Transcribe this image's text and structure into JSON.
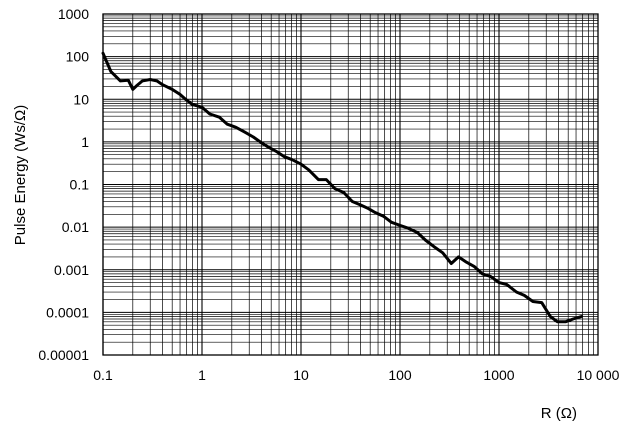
{
  "chart_data": {
    "type": "line",
    "title": "",
    "xlabel": "R (Ω)",
    "ylabel": "Pulse Energy (Ws/Ω)",
    "x_scale": "log",
    "y_scale": "log",
    "xlim": [
      0.1,
      10000
    ],
    "ylim": [
      1e-05,
      1000
    ],
    "x_ticks": [
      {
        "value": 0.1,
        "label": "0.1"
      },
      {
        "value": 1,
        "label": "1"
      },
      {
        "value": 10,
        "label": "10"
      },
      {
        "value": 100,
        "label": "100"
      },
      {
        "value": 1000,
        "label": "1000"
      },
      {
        "value": 10000,
        "label": "10 000"
      }
    ],
    "y_ticks": [
      {
        "value": 1000,
        "label": "1000"
      },
      {
        "value": 100,
        "label": "100"
      },
      {
        "value": 10,
        "label": "10"
      },
      {
        "value": 1,
        "label": "1"
      },
      {
        "value": 0.1,
        "label": "0.1"
      },
      {
        "value": 0.01,
        "label": "0.01"
      },
      {
        "value": 0.001,
        "label": "0.001"
      },
      {
        "value": 0.0001,
        "label": "0.0001"
      },
      {
        "value": 1e-05,
        "label": "0.00001"
      }
    ],
    "grid": true,
    "series": [
      {
        "color": "#000000",
        "x": [
          0.1,
          0.12,
          0.15,
          0.18,
          0.2,
          0.22,
          0.25,
          0.3,
          0.35,
          0.4,
          0.5,
          0.6,
          0.7,
          0.8,
          1.0,
          1.2,
          1.5,
          1.8,
          2.2,
          2.7,
          3.3,
          4.0,
          4.7,
          5.6,
          6.8,
          8.2,
          10,
          12,
          15,
          18,
          22,
          27,
          33,
          39,
          47,
          56,
          68,
          82,
          100,
          120,
          150,
          180,
          220,
          270,
          330,
          390,
          470,
          560,
          680,
          820,
          1000,
          1200,
          1500,
          1800,
          2200,
          2700,
          3300,
          3900,
          4700,
          5600,
          6800
        ],
        "y": [
          120,
          45,
          27,
          28,
          17,
          21,
          27,
          29,
          27,
          22,
          17,
          13,
          9.5,
          7.5,
          6.5,
          4.5,
          3.8,
          2.6,
          2.2,
          1.7,
          1.3,
          0.95,
          0.75,
          0.6,
          0.45,
          0.38,
          0.3,
          0.22,
          0.13,
          0.13,
          0.08,
          0.065,
          0.04,
          0.034,
          0.028,
          0.022,
          0.018,
          0.013,
          0.011,
          0.0095,
          0.0075,
          0.005,
          0.0035,
          0.0025,
          0.0014,
          0.002,
          0.0015,
          0.0012,
          0.0008,
          0.0007,
          0.0005,
          0.00045,
          0.0003,
          0.00025,
          0.00018,
          0.00017,
          8e-05,
          6e-05,
          6e-05,
          7e-05,
          8e-05
        ]
      }
    ]
  }
}
